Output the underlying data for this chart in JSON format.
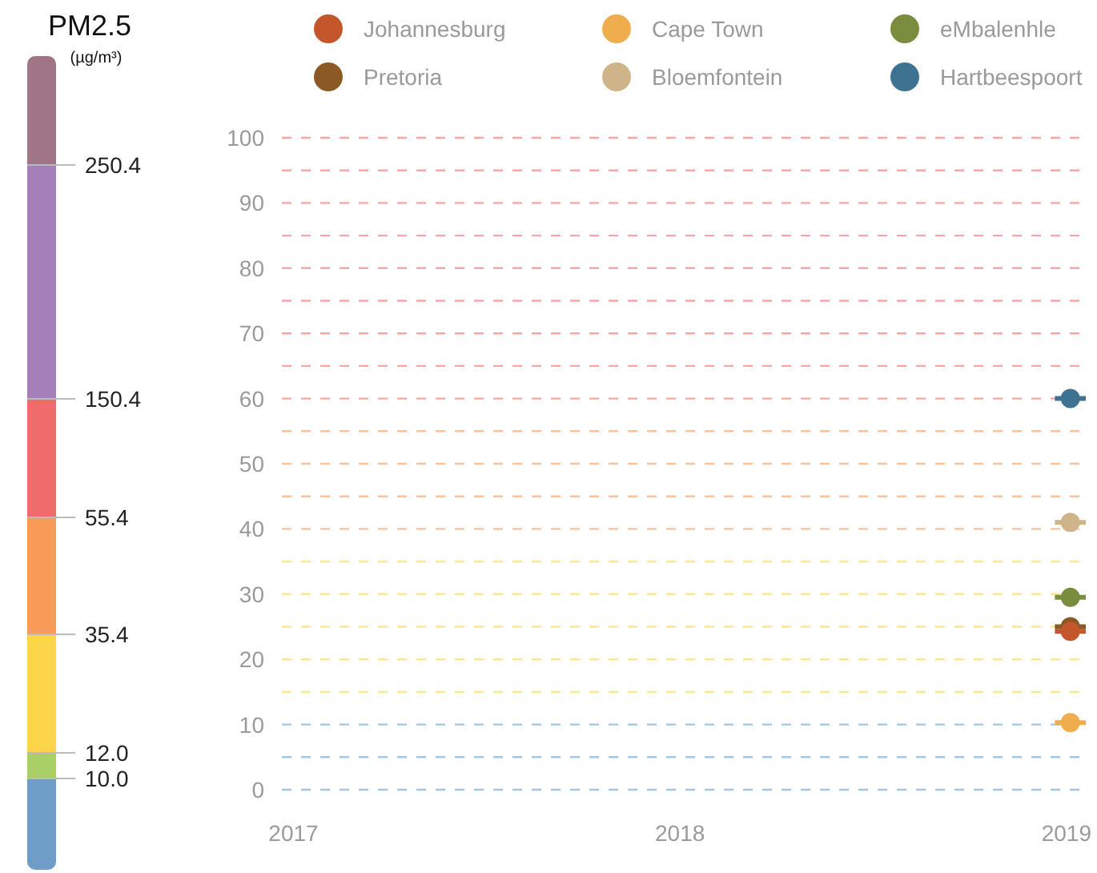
{
  "chart_data": [
    {
      "type": "other",
      "title": "PM2.5",
      "subtitle": "(µg/m³)",
      "annotations": [
        "10.0",
        "12.0",
        "35.4",
        "55.4",
        "150.4",
        "250.4"
      ],
      "colors": [
        "#6e9ec8",
        "#a8d066",
        "#fdd54a",
        "#f89a58",
        "#f06b6b",
        "#a47fba",
        "#a07585"
      ]
    },
    {
      "type": "scatter",
      "x": [
        2019.01
      ],
      "xlim": [
        2016.97,
        2019.05
      ],
      "xticks": [
        2017,
        2018,
        2019
      ],
      "ylim": [
        0,
        100
      ],
      "yticks": [
        0,
        {
          "value": 5,
          "label": null
        },
        10,
        {
          "value": 15,
          "label": null
        },
        20,
        {
          "value": 25,
          "label": null
        },
        30,
        {
          "value": 35,
          "label": null
        },
        40,
        {
          "value": 45,
          "label": null
        },
        50,
        {
          "value": 55,
          "label": null
        },
        60,
        {
          "value": 65,
          "label": null
        },
        70,
        {
          "value": 75,
          "label": null
        },
        80,
        {
          "value": 85,
          "label": null
        },
        90,
        {
          "value": 95,
          "label": null
        },
        100
      ],
      "grid": "y",
      "legend": "top",
      "marker": "circle",
      "series": [
        {
          "name": "Johannesburg",
          "color": "#c4562c",
          "values": [
            24.3
          ],
          "xerrors": [
            0.04
          ]
        },
        {
          "name": "Pretoria",
          "color": "#8b5a24",
          "values": [
            25
          ],
          "xerrors": [
            0.04
          ]
        },
        {
          "name": "Cape Town",
          "color": "#f0ad4e",
          "values": [
            10.3
          ],
          "xerrors": [
            0.04
          ]
        },
        {
          "name": "Bloemfontein",
          "color": "#cfb48a",
          "values": [
            41
          ],
          "xerrors": [
            0.04
          ]
        },
        {
          "name": "eMbalenhle",
          "color": "#7a8c3e",
          "values": [
            29.5
          ],
          "xerrors": [
            0.04
          ]
        },
        {
          "name": "Hartbeespoort",
          "color": "#3d7390",
          "values": [
            60
          ],
          "xerrors": [
            0.04
          ]
        }
      ]
    }
  ]
}
